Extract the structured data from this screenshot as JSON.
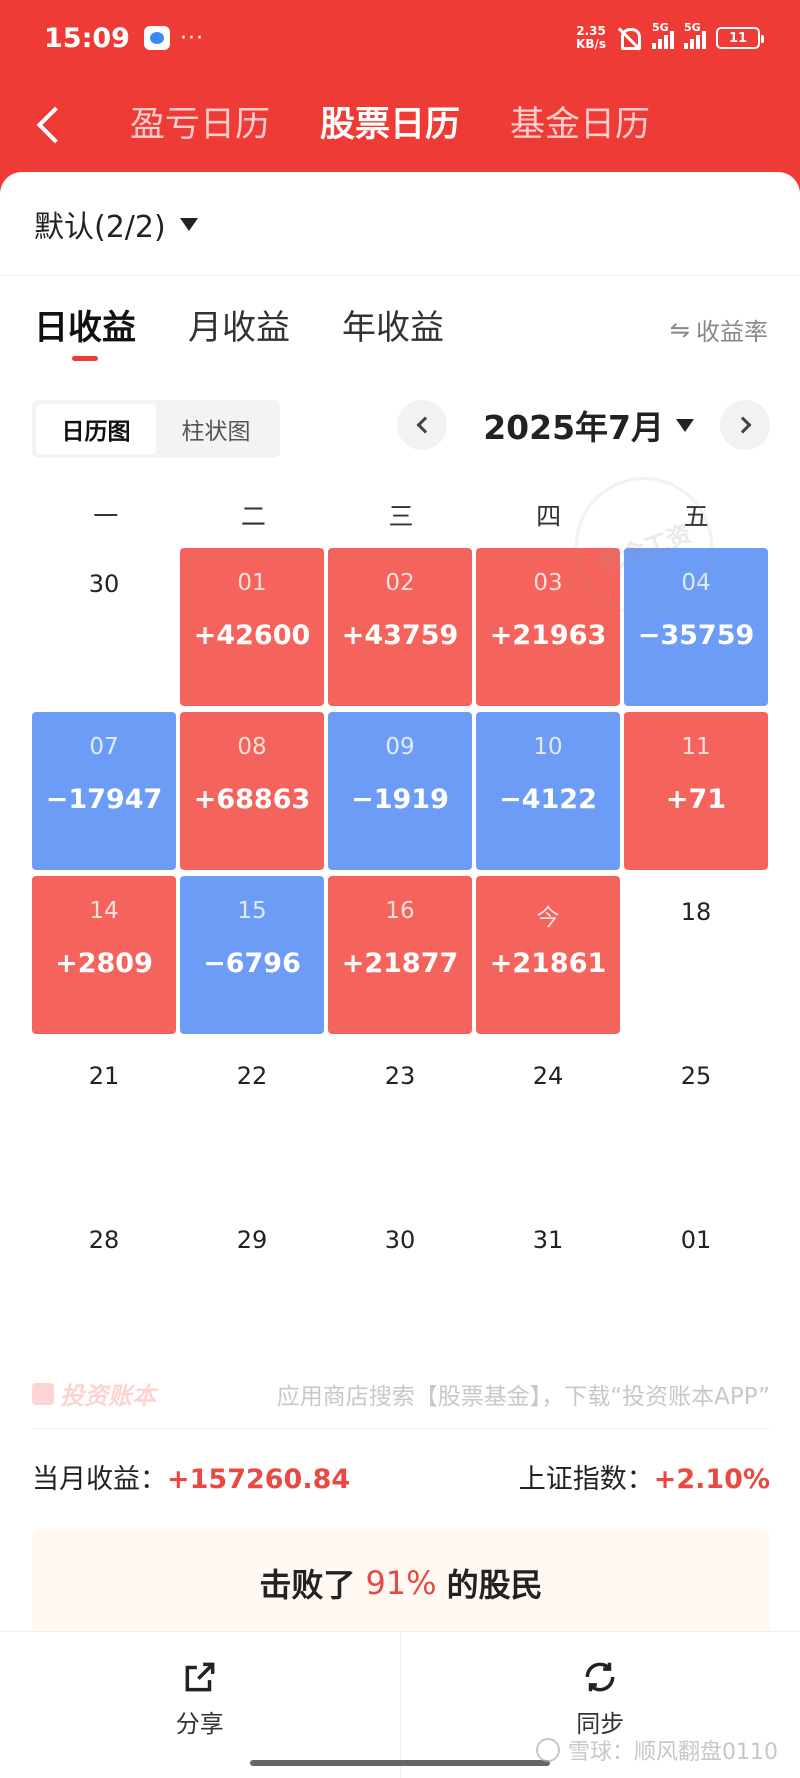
{
  "status_bar": {
    "time": "15:09",
    "dots": "···",
    "net_speed_value": "2.35",
    "net_speed_unit": "KB/s",
    "signal1_label": "5G",
    "signal2_label": "5G",
    "battery": "11"
  },
  "header": {
    "tabs": [
      {
        "label": "盈亏日历"
      },
      {
        "label": "股票日历"
      },
      {
        "label": "基金日历"
      }
    ],
    "active_tab": 1
  },
  "account_selector": {
    "label": "默认(2/2)"
  },
  "period_tabs": [
    {
      "label": "日收益"
    },
    {
      "label": "月收益"
    },
    {
      "label": "年收益"
    }
  ],
  "rate_toggle": {
    "label": "收益率"
  },
  "view_toggle": [
    {
      "label": "日历图"
    },
    {
      "label": "柱状图"
    }
  ],
  "month_label": "2025年7月",
  "weekdays": [
    "一",
    "二",
    "三",
    "四",
    "五"
  ],
  "calendar": [
    {
      "date": "30",
      "pnl": "",
      "type": "plain"
    },
    {
      "date": "01",
      "pnl": "+42600",
      "type": "gain"
    },
    {
      "date": "02",
      "pnl": "+43759",
      "type": "gain"
    },
    {
      "date": "03",
      "pnl": "+21963",
      "type": "gain"
    },
    {
      "date": "04",
      "pnl": "−35759",
      "type": "loss"
    },
    {
      "date": "07",
      "pnl": "−17947",
      "type": "loss"
    },
    {
      "date": "08",
      "pnl": "+68863",
      "type": "gain"
    },
    {
      "date": "09",
      "pnl": "−1919",
      "type": "loss"
    },
    {
      "date": "10",
      "pnl": "−4122",
      "type": "loss"
    },
    {
      "date": "11",
      "pnl": "+71",
      "type": "gain"
    },
    {
      "date": "14",
      "pnl": "+2809",
      "type": "gain"
    },
    {
      "date": "15",
      "pnl": "−6796",
      "type": "loss"
    },
    {
      "date": "16",
      "pnl": "+21877",
      "type": "gain"
    },
    {
      "date": "今",
      "pnl": "+21861",
      "type": "gain"
    },
    {
      "date": "18",
      "pnl": "",
      "type": "plain"
    },
    {
      "date": "21",
      "pnl": "",
      "type": "plain"
    },
    {
      "date": "22",
      "pnl": "",
      "type": "plain"
    },
    {
      "date": "23",
      "pnl": "",
      "type": "plain"
    },
    {
      "date": "24",
      "pnl": "",
      "type": "plain"
    },
    {
      "date": "25",
      "pnl": "",
      "type": "plain"
    },
    {
      "date": "28",
      "pnl": "",
      "type": "plain"
    },
    {
      "date": "29",
      "pnl": "",
      "type": "plain"
    },
    {
      "date": "30",
      "pnl": "",
      "type": "plain"
    },
    {
      "date": "31",
      "pnl": "",
      "type": "plain"
    },
    {
      "date": "01",
      "pnl": "",
      "type": "plain"
    }
  ],
  "stamp_text": "包含工资",
  "footer_ad": {
    "brand": "投资账本",
    "text": "应用商店搜索【股票基金】，下载“投资账本APP”"
  },
  "summary": {
    "month_label": "当月收益：",
    "month_value": "+157260.84",
    "index_label": "上证指数：",
    "index_value": "+2.10%"
  },
  "beat_banner": {
    "prefix": "击败了",
    "percent": "91%",
    "suffix": "的股民"
  },
  "actions": {
    "share": "分享",
    "sync": "同步"
  },
  "watermark": "雪球：顺风翻盘0110",
  "colors": {
    "brand_red": "#ef3b36",
    "gain": "#f5645c",
    "loss": "#6d9cf7"
  }
}
